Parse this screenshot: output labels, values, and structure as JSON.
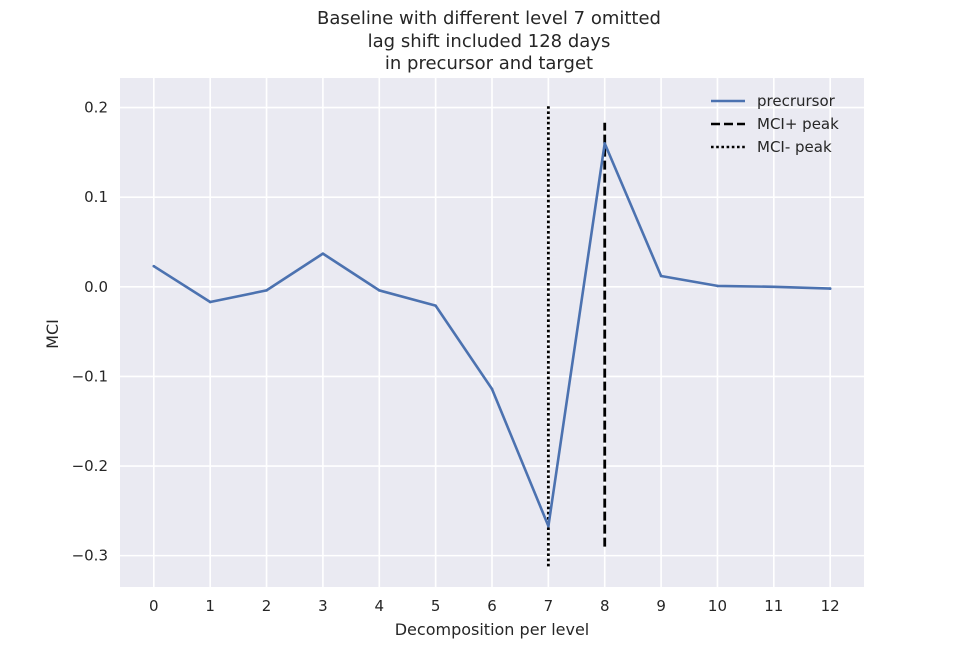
{
  "chart_data": {
    "type": "line",
    "title_lines": [
      "Baseline with different level 7 omitted",
      "lag shift included 128 days",
      "in precursor and target"
    ],
    "xlabel": "Decomposition per level",
    "ylabel": "MCI",
    "x": [
      0,
      1,
      2,
      3,
      4,
      5,
      6,
      7,
      8,
      9,
      10,
      11,
      12
    ],
    "xlim": [
      -0.6,
      12.6
    ],
    "ylim": [
      -0.335,
      0.233
    ],
    "x_ticks": [
      0,
      1,
      2,
      3,
      4,
      5,
      6,
      7,
      8,
      9,
      10,
      11,
      12
    ],
    "y_ticks": [
      0.2,
      0.1,
      0.0,
      -0.1,
      -0.2,
      -0.3
    ],
    "y_tick_labels": [
      "0.2",
      "0.1",
      "0.0",
      "−0.1",
      "−0.2",
      "−0.3"
    ],
    "grid": true,
    "legend_position": "top-right",
    "series": [
      {
        "name": "precrursor",
        "style": "solid",
        "color": "#4c72b0",
        "values": [
          0.023,
          -0.017,
          -0.004,
          0.037,
          -0.004,
          -0.021,
          -0.114,
          -0.267,
          0.16,
          0.012,
          0.001,
          0.0,
          -0.002
        ]
      }
    ],
    "vlines": [
      {
        "name": "MCI+ peak",
        "style": "dashed",
        "color": "#000000",
        "x": 8,
        "ymin": -0.29,
        "ymax": 0.183
      },
      {
        "name": "MCI- peak",
        "style": "dotted",
        "color": "#000000",
        "x": 7,
        "ymin": -0.312,
        "ymax": 0.204
      }
    ],
    "colors": {
      "plot_background": "#eaeaf2",
      "grid": "#ffffff"
    }
  }
}
